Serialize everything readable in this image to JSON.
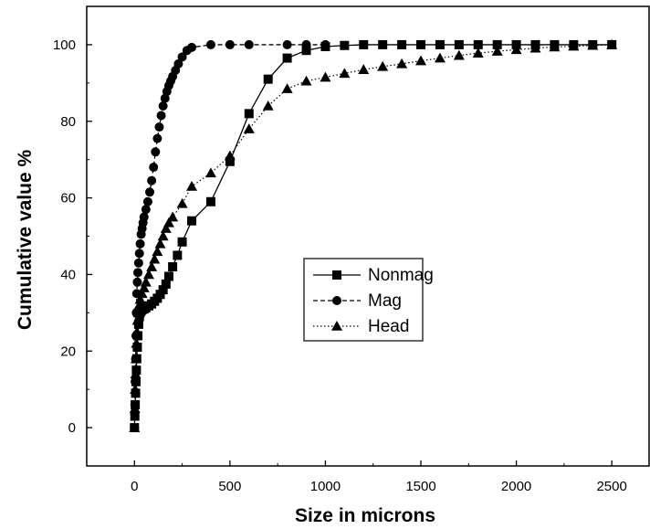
{
  "chart_data": {
    "type": "line",
    "xlabel": "Size in microns",
    "ylabel": "Cumulative value %",
    "xlim": [
      -250,
      2700
    ],
    "ylim": [
      -10,
      110
    ],
    "xticks": [
      0,
      500,
      1000,
      1500,
      2000,
      2500
    ],
    "yticks": [
      0,
      20,
      40,
      60,
      80,
      100
    ],
    "grid": false,
    "legend_position": "center",
    "series": [
      {
        "name": "Nonmag",
        "marker": "square",
        "line_style": "solid",
        "color": "#000000",
        "x": [
          0,
          2,
          4,
          6,
          8,
          10,
          12,
          15,
          18,
          22,
          26,
          30,
          35,
          40,
          50,
          60,
          75,
          90,
          105,
          120,
          135,
          150,
          165,
          180,
          200,
          225,
          250,
          300,
          400,
          500,
          600,
          700,
          800,
          900,
          1000,
          1100,
          1200,
          1300,
          1400,
          1500,
          1600,
          1700,
          1800,
          1900,
          2000,
          2100,
          2200,
          2300,
          2400,
          2500
        ],
        "y": [
          0,
          3,
          6,
          9,
          12,
          15,
          18,
          21,
          24,
          27,
          29,
          30,
          30.5,
          30.8,
          31,
          31.3,
          31.8,
          32.3,
          33,
          33.8,
          34.8,
          36,
          37.5,
          39.5,
          42,
          45,
          48.5,
          54,
          59,
          69.5,
          82,
          91,
          96.5,
          98.5,
          99.5,
          99.8,
          100,
          100,
          100,
          100,
          100,
          100,
          100,
          100,
          100,
          100,
          100,
          100,
          100,
          100
        ]
      },
      {
        "name": "Mag",
        "marker": "circle",
        "line_style": "dashed",
        "color": "#000000",
        "x": [
          0,
          2,
          4,
          6,
          8,
          10,
          12,
          15,
          18,
          22,
          26,
          30,
          35,
          40,
          45,
          50,
          60,
          70,
          80,
          90,
          100,
          110,
          120,
          130,
          140,
          150,
          160,
          170,
          180,
          190,
          200,
          215,
          230,
          250,
          275,
          300,
          400,
          500,
          600,
          800,
          900,
          1000
        ],
        "y": [
          0,
          6,
          12,
          18,
          24,
          30,
          35,
          38,
          40.5,
          43,
          45.5,
          48,
          50.5,
          52,
          53.5,
          55,
          57,
          59,
          61.5,
          64.5,
          68,
          72,
          75.5,
          78.5,
          81.5,
          84,
          86,
          87.8,
          89.3,
          90.5,
          91.7,
          93.3,
          95,
          96.8,
          98.5,
          99.3,
          100,
          100,
          100,
          100,
          100,
          100
        ]
      },
      {
        "name": "Head",
        "marker": "triangle",
        "line_style": "dotted",
        "color": "#000000",
        "x": [
          0,
          2,
          4,
          6,
          8,
          10,
          13,
          16,
          20,
          25,
          30,
          40,
          50,
          60,
          75,
          90,
          105,
          120,
          135,
          150,
          165,
          180,
          200,
          250,
          300,
          400,
          500,
          600,
          700,
          800,
          900,
          1000,
          1100,
          1200,
          1300,
          1400,
          1500,
          1600,
          1700,
          1800,
          1900,
          2000,
          2100,
          2200,
          2300,
          2400,
          2500
        ],
        "y": [
          0,
          5,
          10,
          14,
          18,
          22,
          25,
          28,
          30,
          32,
          33.5,
          35,
          36.5,
          38,
          40,
          42,
          44,
          46,
          48,
          50,
          52,
          53.5,
          55,
          58.5,
          63,
          66.5,
          71,
          78,
          84,
          88.5,
          90.5,
          91.5,
          92.5,
          93.5,
          94.3,
          95,
          95.8,
          96.5,
          97.2,
          97.8,
          98.3,
          98.7,
          99.1,
          99.4,
          99.6,
          99.8,
          100
        ]
      }
    ]
  }
}
